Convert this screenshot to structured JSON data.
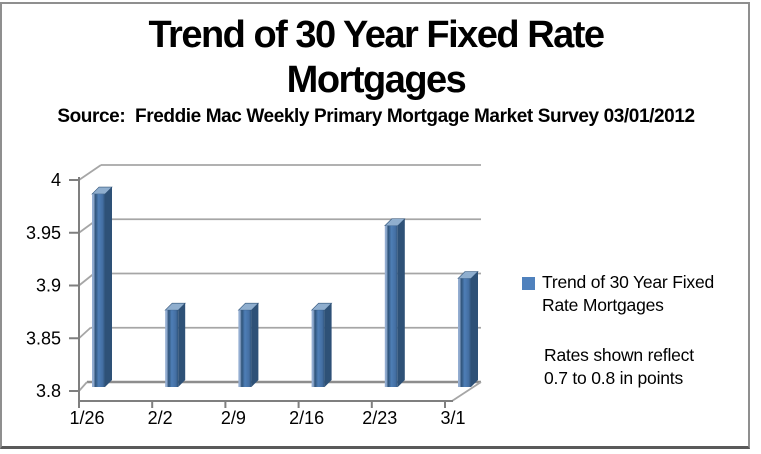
{
  "title": {
    "line1": "Trend of 30 Year Fixed Rate",
    "line2": "Mortgages"
  },
  "subtitle": "Source:  Freddie Mac Weekly Primary Mortgage Market Survey 03/01/2012",
  "legend": {
    "label_line1": "Trend of 30 Year Fixed",
    "label_line2": "Rate Mortgages",
    "swatch_color": "#4F81BD"
  },
  "note": {
    "line1": "Rates shown reflect",
    "line2": "0.7 to 0.8 in points"
  },
  "chart_data": {
    "type": "bar",
    "style": "3d-column",
    "title": "Trend of 30 Year Fixed Rate Mortgages",
    "source_note": "Source:  Freddie Mac Weekly Primary Mortgage Market Survey 03/01/2012",
    "categories": [
      "1/26",
      "2/2",
      "2/9",
      "2/16",
      "2/23",
      "3/1"
    ],
    "series": [
      {
        "name": "Trend of 30 Year Fixed Rate Mortgages",
        "values": [
          3.98,
          3.87,
          3.87,
          3.87,
          3.95,
          3.9
        ]
      }
    ],
    "xlabel": "",
    "ylabel": "",
    "ylim": [
      3.8,
      4.0
    ],
    "ytick_interval": 0.05,
    "yticks": [
      {
        "value": 4,
        "label": "4"
      },
      {
        "value": 3.95,
        "label": "3.95"
      },
      {
        "value": 3.9,
        "label": "3.9"
      },
      {
        "value": 3.85,
        "label": "3.85"
      },
      {
        "value": 3.8,
        "label": "3.8"
      }
    ],
    "grid": true,
    "legend_position": "right",
    "annotation": "Rates shown reflect 0.7 to 0.8 in points",
    "colors": {
      "bar_light": "#93ADD1",
      "bar_mid": "#4E7EB6",
      "bar_shade": "#446FA3",
      "bar_dark": "#2F5379",
      "bar_side": "#2E5177",
      "bar_top": "#8FAECE",
      "gridline": "#A6A6A6",
      "gridline_base": "#8D8D8D",
      "axis": "#7F7F7F",
      "text": "#000000"
    }
  }
}
